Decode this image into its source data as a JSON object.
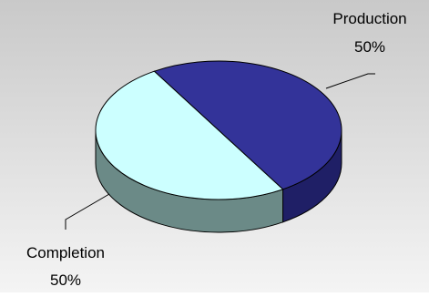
{
  "chart_data": {
    "type": "pie",
    "three_d": true,
    "slices": [
      {
        "label": "Production",
        "value": 50,
        "value_label": "50%",
        "color": "#333399",
        "side_color": "#1f1f66"
      },
      {
        "label": "Completion",
        "value": 50,
        "value_label": "50%",
        "color": "#ccffff",
        "side_color": "#6b8a87"
      }
    ],
    "background": "gradient-gray",
    "legend": "none"
  }
}
